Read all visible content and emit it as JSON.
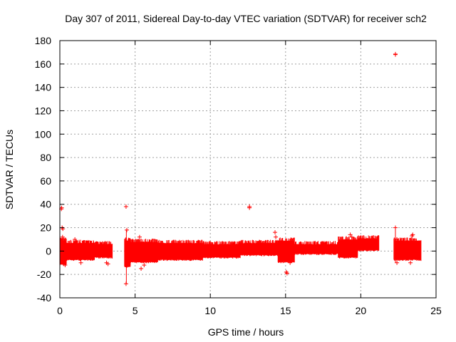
{
  "chart_data": {
    "type": "scatter",
    "title": "Day 307 of 2011, Sidereal Day-to-day VTEC variation (SDTVAR) for receiver sch2",
    "xlabel": "GPS time / hours",
    "ylabel": "SDTVAR / TECUs",
    "xlim": [
      0,
      25
    ],
    "ylim": [
      -40,
      180
    ],
    "xticks": [
      0,
      5,
      10,
      15,
      20,
      25
    ],
    "yticks": [
      -40,
      -20,
      0,
      20,
      40,
      60,
      80,
      100,
      120,
      140,
      160,
      180
    ],
    "grid": true,
    "marker": "+",
    "colors": {
      "points": "#ff0000",
      "grid": "#a0a0a0",
      "axes": "#000000"
    },
    "bands": [
      {
        "x": [
          0.05,
          0.45
        ],
        "ymin": -10,
        "ymax": 8
      },
      {
        "x": [
          0.45,
          2.3
        ],
        "ymin": -6,
        "ymax": 6
      },
      {
        "x": [
          2.3,
          3.5
        ],
        "ymin": -4,
        "ymax": 5
      },
      {
        "x": [
          4.3,
          4.7
        ],
        "ymin": -12,
        "ymax": 8
      },
      {
        "x": [
          4.7,
          6.5
        ],
        "ymin": -8,
        "ymax": 7
      },
      {
        "x": [
          6.5,
          9.5
        ],
        "ymin": -6,
        "ymax": 6
      },
      {
        "x": [
          9.5,
          12.0
        ],
        "ymin": -4,
        "ymax": 5
      },
      {
        "x": [
          12.0,
          14.5
        ],
        "ymin": -2,
        "ymax": 6
      },
      {
        "x": [
          14.5,
          15.6
        ],
        "ymin": -8,
        "ymax": 8
      },
      {
        "x": [
          15.6,
          18.5
        ],
        "ymin": -1,
        "ymax": 5
      },
      {
        "x": [
          18.5,
          19.8
        ],
        "ymin": -4,
        "ymax": 9
      },
      {
        "x": [
          19.8,
          21.2
        ],
        "ymin": 2,
        "ymax": 10
      },
      {
        "x": [
          22.2,
          24.0
        ],
        "ymin": -6,
        "ymax": 8
      }
    ],
    "points": [
      [
        0.1,
        36
      ],
      [
        0.12,
        37
      ],
      [
        0.15,
        20
      ],
      [
        0.2,
        19
      ],
      [
        0.18,
        12
      ],
      [
        0.25,
        -11
      ],
      [
        0.35,
        -12
      ],
      [
        1.0,
        10
      ],
      [
        1.4,
        -10
      ],
      [
        3.1,
        -10
      ],
      [
        3.2,
        -11
      ],
      [
        4.4,
        38
      ],
      [
        4.45,
        18
      ],
      [
        4.4,
        -28
      ],
      [
        4.5,
        -10
      ],
      [
        5.3,
        12
      ],
      [
        5.4,
        -15
      ],
      [
        5.6,
        -12
      ],
      [
        12.6,
        38
      ],
      [
        12.6,
        37
      ],
      [
        14.3,
        16
      ],
      [
        14.35,
        12
      ],
      [
        15.05,
        -18
      ],
      [
        15.1,
        -19
      ],
      [
        15.3,
        -10
      ],
      [
        19.3,
        14
      ],
      [
        19.4,
        12
      ],
      [
        22.3,
        168
      ],
      [
        22.3,
        168.5
      ],
      [
        22.3,
        20
      ],
      [
        22.4,
        10
      ],
      [
        22.4,
        -10
      ],
      [
        23.3,
        -10
      ],
      [
        23.4,
        13
      ],
      [
        23.45,
        14
      ]
    ]
  }
}
